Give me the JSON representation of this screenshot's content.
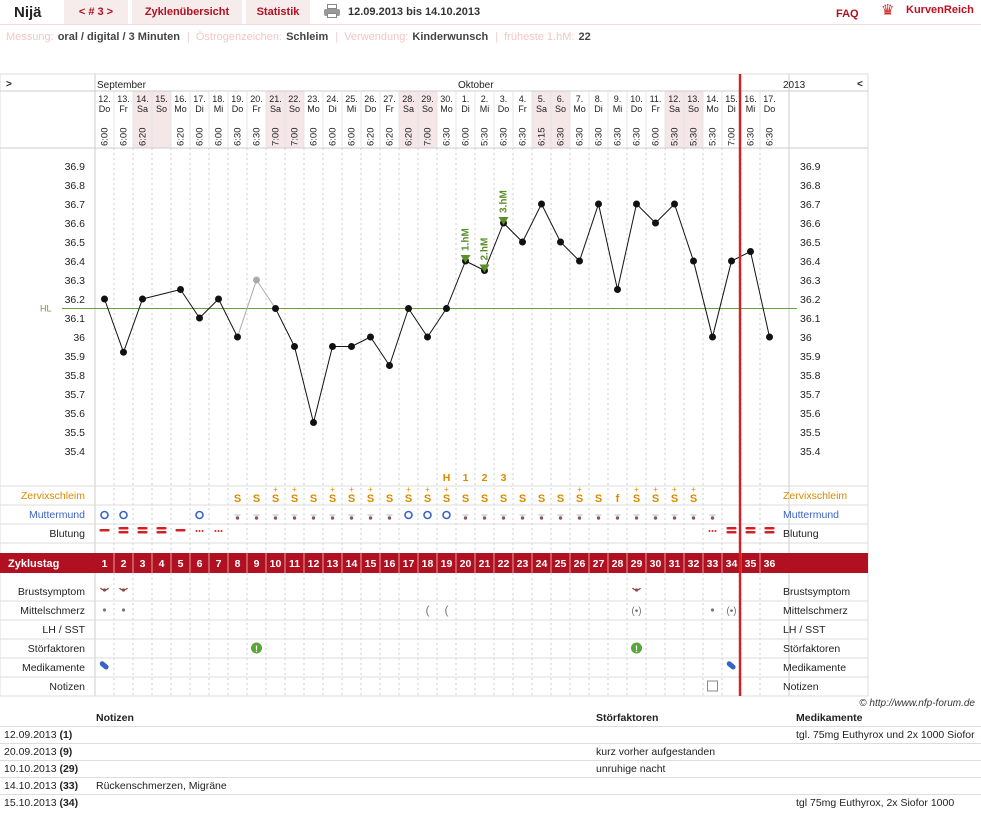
{
  "header": {
    "name": "Nijä",
    "cycle_nav": "< # 3 >",
    "tab_overview": "Zyklenübersicht",
    "tab_stats": "Statistik",
    "date_range": "12.09.2013 bis 14.10.2013",
    "faq": "FAQ",
    "brand": "KurvenReich"
  },
  "meta": {
    "measure_k": "Messung:",
    "measure_v": "oral / digital / 3 Minuten",
    "estro_k": "Östrogenzeichen:",
    "estro_v": "Schleim",
    "use_k": "Verwendung:",
    "use_v": "Kinderwunsch",
    "earliest_k": "früheste 1.hM:",
    "earliest_v": "22"
  },
  "chart": {
    "nav_left": ">",
    "nav_right": "<",
    "year": "2013",
    "hl_label": "HL",
    "copyright": "© http://www.nfp-forum.de",
    "row_labels": [
      "Zervixschleim",
      "Muttermund",
      "Blutung",
      "Zyklustag",
      "Brustsymptom",
      "Mittelschmerz",
      "LH / SST",
      "Störfaktoren",
      "Medikamente",
      "Notizen"
    ],
    "row_labels_right": [
      "Zervixschleim",
      "Muttermund",
      "Blutung",
      "Brustsymptom",
      "Mittelschmerz",
      "LH / SST",
      "Störfaktoren",
      "Medikamente",
      "Notizen"
    ],
    "colors": {
      "accent": "#b01020",
      "mucus": "#d98a00",
      "cervix": "#3a63c8",
      "hl": "#6e9e3a",
      "marker": "#5b8f2a",
      "today": "#d42020",
      "weekend": "#f5e6e8"
    }
  },
  "chart_data": {
    "type": "line",
    "ylim": [
      35.4,
      36.9
    ],
    "hl": 36.15,
    "months": [
      {
        "name": "September",
        "at": 0
      },
      {
        "name": "Oktober",
        "at": 19
      }
    ],
    "dates": [
      "12.",
      "13.",
      "14.",
      "15.",
      "16.",
      "17.",
      "18.",
      "19.",
      "20.",
      "21.",
      "22.",
      "23.",
      "24.",
      "25.",
      "26.",
      "27.",
      "28.",
      "29.",
      "30.",
      "1.",
      "2.",
      "3.",
      "4.",
      "5.",
      "6.",
      "7.",
      "8.",
      "9.",
      "10.",
      "11.",
      "12.",
      "13.",
      "14.",
      "15.",
      "16.",
      "17."
    ],
    "weekdays": [
      "Do",
      "Fr",
      "Sa",
      "So",
      "Mo",
      "Di",
      "Mi",
      "Do",
      "Fr",
      "Sa",
      "So",
      "Mo",
      "Di",
      "Mi",
      "Do",
      "Fr",
      "Sa",
      "So",
      "Mo",
      "Di",
      "Mi",
      "Do",
      "Fr",
      "Sa",
      "So",
      "Mo",
      "Di",
      "Mi",
      "Do",
      "Fr",
      "Sa",
      "So",
      "Mo",
      "Di",
      "Mi",
      "Do"
    ],
    "times": [
      "6:00",
      "6:00",
      "6:20",
      "",
      "6:20",
      "6:00",
      "6:00",
      "6:30",
      "6:30",
      "7:00",
      "7:00",
      "6:00",
      "6:00",
      "6:00",
      "6:20",
      "6:20",
      "6:20",
      "7:00",
      "6:30",
      "6:00",
      "5:30",
      "6:30",
      "6:30",
      "6:15",
      "6:30",
      "6:30",
      "6:30",
      "6:30",
      "6:30",
      "6:00",
      "5:30",
      "5:30",
      "5:30",
      "7:00",
      "6:30",
      "6:30"
    ],
    "cycle_days": [
      "1",
      "2",
      "3",
      "4",
      "5",
      "6",
      "7",
      "8",
      "9",
      "10",
      "11",
      "12",
      "13",
      "14",
      "15",
      "16",
      "17",
      "18",
      "19",
      "20",
      "21",
      "22",
      "23",
      "24",
      "25",
      "26",
      "27",
      "28",
      "29",
      "30",
      "31",
      "32",
      "33",
      "34",
      "35",
      "36"
    ],
    "temps": [
      36.2,
      35.92,
      36.2,
      null,
      36.25,
      36.1,
      36.2,
      36.0,
      36.3,
      36.15,
      35.95,
      35.55,
      35.95,
      35.95,
      36.0,
      35.85,
      36.15,
      36.0,
      36.15,
      36.4,
      36.35,
      36.6,
      36.5,
      36.7,
      36.5,
      36.4,
      36.7,
      36.25,
      36.7,
      36.6,
      36.7,
      36.4,
      36.0,
      36.4,
      36.45,
      36.0
    ],
    "excluded": [
      8
    ],
    "high_markers": [
      {
        "idx": 19,
        "label": "1.hM"
      },
      {
        "idx": 20,
        "label": "2.hM"
      },
      {
        "idx": 21,
        "label": "3.hM"
      }
    ],
    "peak_labels": [
      {
        "idx": 18,
        "label": "H"
      },
      {
        "idx": 19,
        "label": "1"
      },
      {
        "idx": 20,
        "label": "2"
      },
      {
        "idx": 21,
        "label": "3"
      }
    ],
    "mucus": [
      "",
      "",
      "",
      "",
      "",
      "",
      "",
      "S",
      "S",
      "S+",
      "S+",
      "S",
      "S+",
      "S+",
      "S+",
      "S",
      "S+",
      "S+",
      "S+",
      "S",
      "S",
      "S",
      "S",
      "S",
      "S",
      "S+",
      "S",
      "f",
      "S+",
      "S+",
      "S+",
      "S+",
      "",
      "",
      "",
      ""
    ],
    "today_index": 33
  },
  "notes": {
    "h_notes": "Notizen",
    "h_factors": "Störfaktoren",
    "h_meds": "Medikamente",
    "rows": [
      {
        "date": "12.09.2013",
        "day": "(1)",
        "note": "",
        "factor": "",
        "med": "tgl. 75mg Euthyrox und 2x 1000 Siofor"
      },
      {
        "date": "20.09.2013",
        "day": "(9)",
        "note": "",
        "factor": "kurz vorher aufgestanden",
        "med": ""
      },
      {
        "date": "10.10.2013",
        "day": "(29)",
        "note": "",
        "factor": "unruhige nacht",
        "med": ""
      },
      {
        "date": "14.10.2013",
        "day": "(33)",
        "note": "Rückenschmerzen, Migräne",
        "factor": "",
        "med": ""
      },
      {
        "date": "15.10.2013",
        "day": "(34)",
        "note": "",
        "factor": "",
        "med": "tgl 75mg Euthyrox, 2x Siofor 1000"
      }
    ]
  }
}
